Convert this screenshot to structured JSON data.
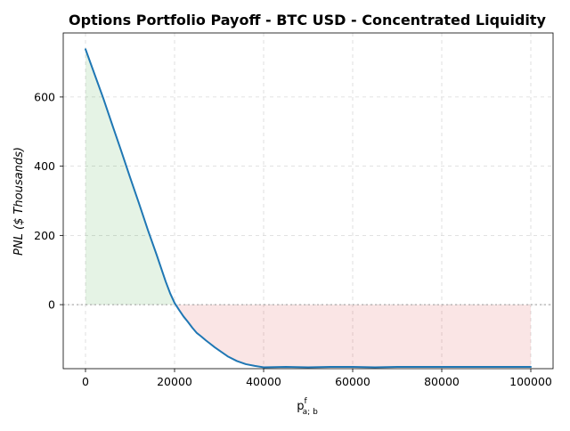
{
  "chart_data": {
    "type": "line",
    "title": "Options Portfolio Payoff - BTC USD - Concentrated Liquidity",
    "xlabel": {
      "base": "p",
      "sup": "f",
      "sub": "a; b"
    },
    "ylabel": "PNL ($ Thousands)",
    "xlim": [
      -5000,
      105000
    ],
    "ylim": [
      -185,
      785
    ],
    "x_ticks": [
      0,
      20000,
      40000,
      60000,
      80000,
      100000
    ],
    "x_tick_labels": [
      "0",
      "20000",
      "40000",
      "60000",
      "80000",
      "100000"
    ],
    "y_ticks": [
      0,
      200,
      400,
      600
    ],
    "y_tick_labels": [
      "0",
      "200",
      "400",
      "600"
    ],
    "grid": true,
    "zero_line": true,
    "series": [
      {
        "color": "#1f77b4",
        "x": [
          0,
          2000,
          4000,
          6000,
          8000,
          10000,
          12000,
          14000,
          16000,
          18000,
          19000,
          20000,
          21000,
          22000,
          23000,
          24000,
          25000,
          26000,
          27000,
          28000,
          29000,
          30000,
          32000,
          34000,
          36000,
          38000,
          40000,
          45000,
          50000,
          55000,
          60000,
          65000,
          70000,
          75000,
          80000,
          85000,
          90000,
          95000,
          100000
        ],
        "y": [
          738,
          667,
          596,
          520,
          445,
          368,
          293,
          216,
          143,
          67,
          33,
          5,
          -15,
          -34,
          -50,
          -67,
          -82,
          -92,
          -103,
          -113,
          -123,
          -132,
          -150,
          -163,
          -172,
          -177,
          -181,
          -180,
          -181,
          -180,
          -180,
          -181,
          -180,
          -180,
          -180,
          -180,
          -180,
          -180,
          -180
        ]
      }
    ],
    "fill": {
      "positive_color": "#2ca02c",
      "negative_color": "#d62728",
      "opacity": 0.12
    }
  }
}
